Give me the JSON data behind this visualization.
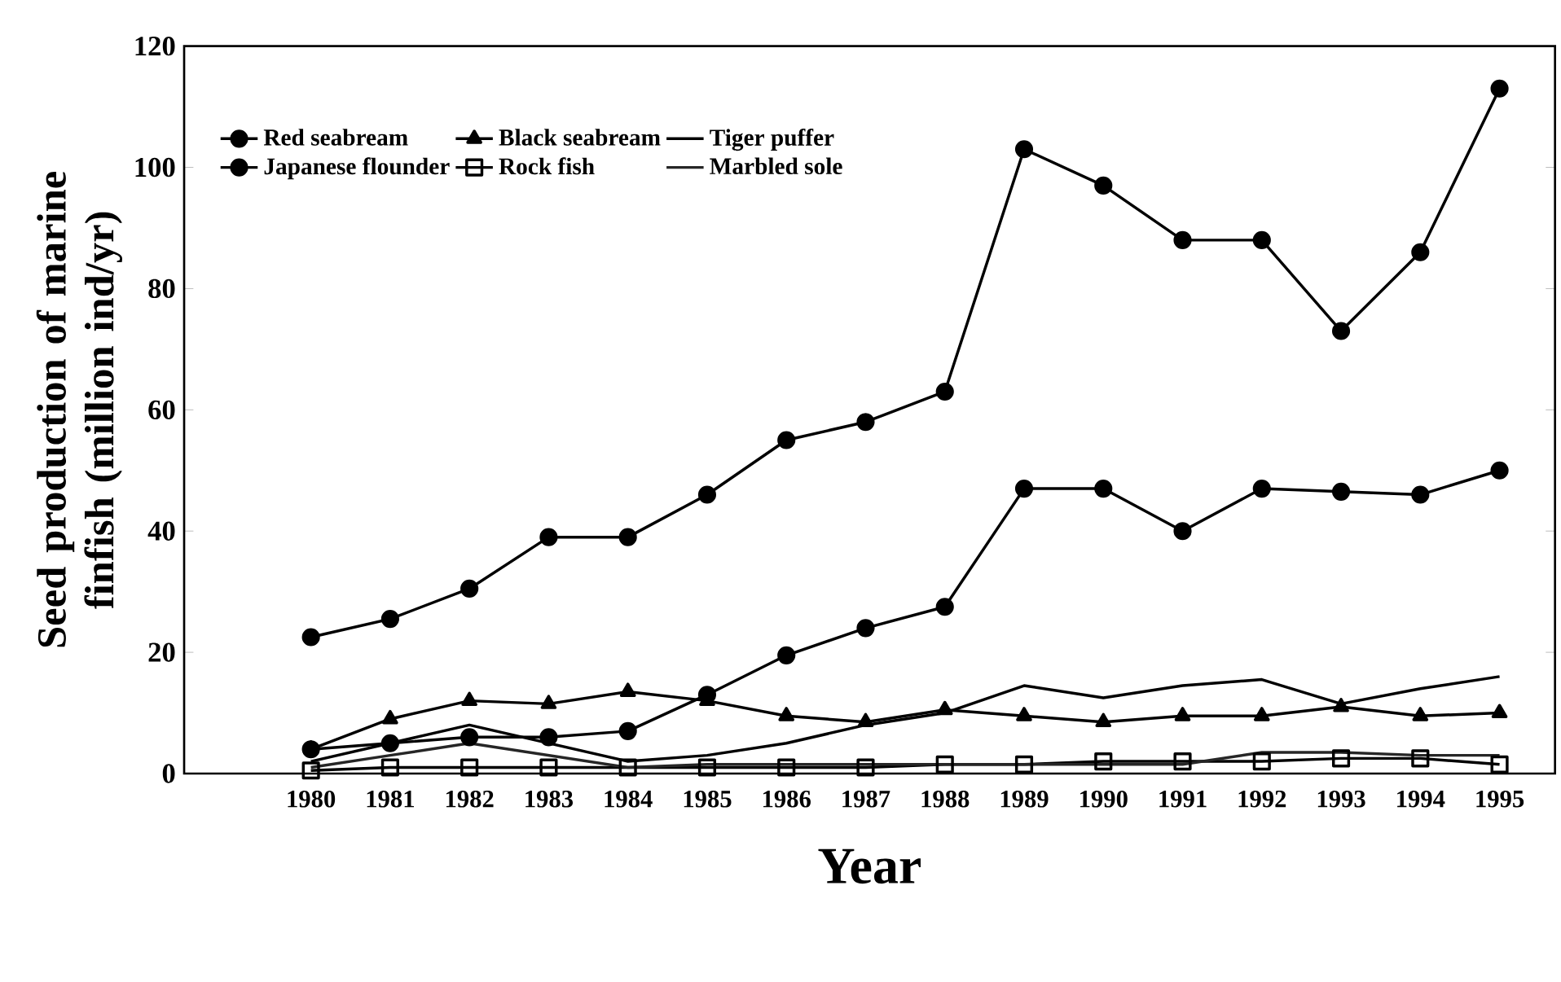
{
  "chart_data": {
    "type": "line",
    "xlabel": "Year",
    "ylabel": "Seed production of marine finfish (million ind/yr)",
    "x": [
      1980,
      1981,
      1982,
      1983,
      1984,
      1985,
      1986,
      1987,
      1988,
      1989,
      1990,
      1991,
      1992,
      1993,
      1994,
      1995
    ],
    "xlim": [
      1978.4,
      1995.7
    ],
    "xticks": [
      1980,
      1981,
      1982,
      1983,
      1984,
      1985,
      1986,
      1987,
      1988,
      1989,
      1990,
      1991,
      1992,
      1993,
      1994,
      1995
    ],
    "ylim": [
      0,
      120
    ],
    "yticks": [
      0,
      20,
      40,
      60,
      80,
      100,
      120
    ],
    "grid": false,
    "legend": "top left",
    "line_style": "solid",
    "series": [
      {
        "name": "Red seabream",
        "color": "#000000",
        "marker": "circle",
        "values": [
          22.5,
          25.5,
          30.5,
          39,
          39,
          46,
          55,
          58,
          63,
          103,
          97,
          88,
          88,
          73,
          86,
          113
        ]
      },
      {
        "name": "Japanese flounder",
        "color": "#000000",
        "marker": "circle",
        "values": [
          4,
          5,
          6,
          6,
          7,
          13,
          19.5,
          24,
          27.5,
          47,
          47,
          40,
          47,
          46.5,
          46,
          50
        ]
      },
      {
        "name": "Black seabream",
        "color": "#000000",
        "marker": "triangle",
        "values": [
          4,
          9,
          12,
          11.5,
          13.5,
          12,
          9.5,
          8.5,
          10.5,
          9.5,
          8.5,
          9.5,
          9.5,
          11,
          9.5,
          10
        ]
      },
      {
        "name": "Rock fish",
        "color": "#000000",
        "marker": "square",
        "values": [
          0.5,
          1,
          1,
          1,
          1,
          1,
          1,
          1,
          1.5,
          1.5,
          2,
          2,
          2,
          2.5,
          2.5,
          1.5
        ]
      },
      {
        "name": "Tiger puffer",
        "color": "#000000",
        "marker": "none",
        "values": [
          2,
          5,
          8,
          5,
          2,
          3,
          5,
          8,
          10,
          14.5,
          12.5,
          14.5,
          15.5,
          11.5,
          14,
          16
        ]
      },
      {
        "name": "Marbled sole",
        "color": "#262626",
        "marker": "none",
        "values": [
          1,
          3,
          5,
          3,
          1,
          1.5,
          1.5,
          1.5,
          1.5,
          1.5,
          1.5,
          1.5,
          3.5,
          3.5,
          3,
          3
        ]
      }
    ]
  }
}
